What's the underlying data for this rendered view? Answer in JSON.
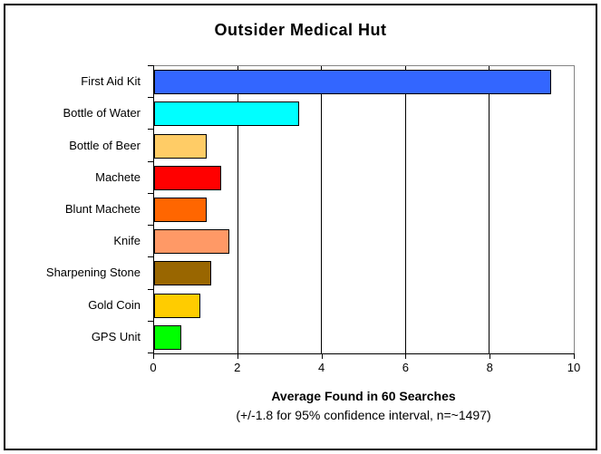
{
  "frame": {
    "background": "#FFFFFF",
    "border_color": "#000000"
  },
  "chart_data": {
    "type": "bar",
    "orientation": "horizontal",
    "title": "Outsider Medical Hut",
    "xlabel": "Average Found in 60 Searches",
    "xlabel_note": "(+/-1.8 for 95% confidence interval, n=~1497)",
    "categories": [
      "First Aid Kit",
      "Bottle of Water",
      "Bottle of Beer",
      "Machete",
      "Blunt Machete",
      "Knife",
      "Sharpening Stone",
      "Gold Coin",
      "GPS Unit"
    ],
    "values": [
      9.45,
      3.45,
      1.25,
      1.6,
      1.25,
      1.8,
      1.35,
      1.1,
      0.65
    ],
    "bar_colors": [
      "#3366FF",
      "#00FFFF",
      "#FFCC66",
      "#FF0000",
      "#FF6600",
      "#FF9966",
      "#996600",
      "#FFCC00",
      "#00FF00"
    ],
    "xlim": [
      0,
      10
    ],
    "xticks": [
      0,
      2,
      4,
      6,
      8,
      10
    ],
    "grid": true,
    "legend": false,
    "colors": {
      "bar_border": "#000000",
      "gridline": "#000000",
      "axis": "#000000",
      "plot_border": "#848484",
      "text": "#000000"
    }
  }
}
